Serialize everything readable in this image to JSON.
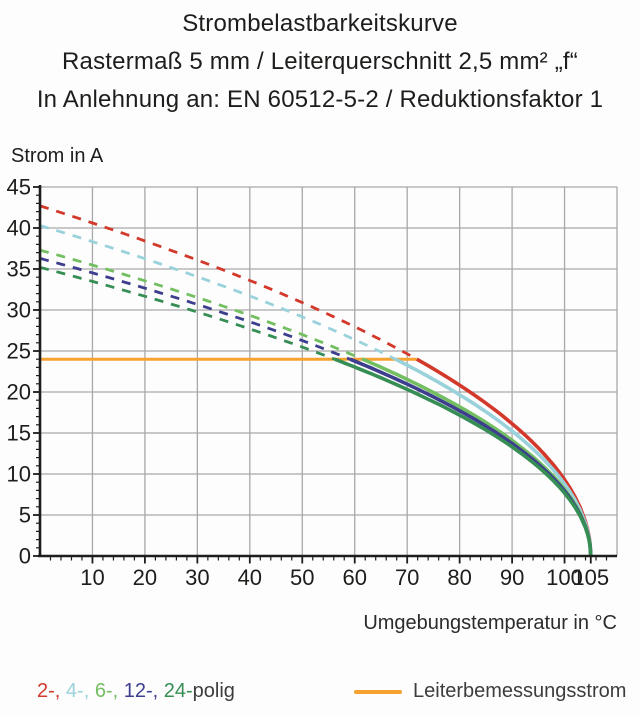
{
  "chart_data": {
    "type": "line",
    "title": "Strombelastbarkeitskurve",
    "subtitle": "Rastermaß 5 mm / Leiterquerschnitt 2,5 mm² „f“",
    "standard": "In Anlehnung an: EN 60512-5-2 / Reduktionsfaktor 1",
    "xlabel": "Umgebungstemperatur in °C",
    "ylabel": "Strom in A",
    "xlim": [
      0,
      110
    ],
    "ylim": [
      0,
      45
    ],
    "x_major_ticks": [
      10,
      20,
      30,
      40,
      50,
      60,
      70,
      80,
      90,
      100,
      105
    ],
    "x_minor_step": 2,
    "y_major_ticks": [
      0,
      5,
      10,
      15,
      20,
      25,
      30,
      35,
      40,
      45
    ],
    "y_minor_step": 1,
    "grid": {
      "on": true,
      "color": "#a8a8a8",
      "x_step": 10,
      "y_step": 5
    },
    "axis_color": "#1d1d1b",
    "curve_model": "I(T) = I0 * sqrt(1 - T/105); dashed where above rated current, solid below",
    "end_temperature_c": 105,
    "rated_line": {
      "label": "Leiterbemessungsstrom",
      "value_a": 24,
      "color": "#f6a230"
    },
    "temperatures_c": [
      0,
      10,
      20,
      30,
      40,
      50,
      60,
      70,
      80,
      90,
      100,
      105
    ],
    "series": [
      {
        "name": "2-polig",
        "color": "#d3392b",
        "i0": 42.7,
        "currents_a": [
          42.7,
          40.6,
          38.4,
          36.1,
          33.6,
          30.9,
          28.0,
          24.7,
          20.8,
          16.1,
          9.3,
          0
        ]
      },
      {
        "name": "4-polig",
        "color": "#9ad2dc",
        "i0": 40.3,
        "currents_a": [
          40.3,
          38.3,
          36.3,
          34.1,
          31.7,
          29.2,
          26.4,
          23.3,
          19.7,
          15.2,
          8.8,
          0
        ]
      },
      {
        "name": "6-polig",
        "color": "#74be62",
        "i0": 37.3,
        "currents_a": [
          37.3,
          35.5,
          33.6,
          31.5,
          29.3,
          27.0,
          24.4,
          21.5,
          18.2,
          14.1,
          8.1,
          0
        ]
      },
      {
        "name": "12-polig",
        "color": "#3d3e8e",
        "i0": 36.3,
        "currents_a": [
          36.3,
          34.5,
          32.7,
          30.7,
          28.6,
          26.3,
          23.8,
          21.0,
          17.7,
          13.7,
          7.9,
          0
        ]
      },
      {
        "name": "24-polig",
        "color": "#368e55",
        "i0": 35.2,
        "currents_a": [
          35.2,
          33.5,
          31.7,
          29.8,
          27.7,
          25.5,
          23.0,
          20.3,
          17.2,
          13.3,
          7.7,
          0
        ]
      }
    ],
    "legend_position": "bottom"
  },
  "legend": {
    "pole_items": [
      {
        "label": "2-,",
        "color": "#d3392b"
      },
      {
        "label": "4-,",
        "color": "#9ad2dc"
      },
      {
        "label": "6-,",
        "color": "#74be62"
      },
      {
        "label": "12-,",
        "color": "#3d3e8e"
      },
      {
        "label": "24-",
        "color": "#368e55"
      }
    ],
    "pole_suffix": "polig",
    "rated_label": "Leiterbemessungsstrom"
  }
}
